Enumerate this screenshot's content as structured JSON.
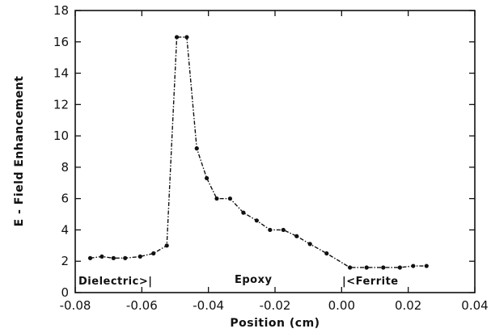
{
  "chart_data": {
    "type": "line",
    "title": "",
    "xlabel": "Position (cm)",
    "ylabel": "E - Field Enhancement",
    "xlim": [
      -0.08,
      0.04
    ],
    "ylim": [
      0,
      18
    ],
    "x_ticks": [
      "-0.08",
      "-0.06",
      "-0.04",
      "-0.02",
      "0.00",
      "0.02",
      "0.04"
    ],
    "y_ticks": [
      "0",
      "2",
      "4",
      "6",
      "8",
      "10",
      "12",
      "14",
      "16",
      "18"
    ],
    "grid": false,
    "series": [
      {
        "x": [
          -0.0755,
          -0.072,
          -0.0685,
          -0.065,
          -0.0605,
          -0.0565,
          -0.0525,
          -0.0495,
          -0.0465,
          -0.0435,
          -0.0405,
          -0.0375,
          -0.0335,
          -0.0295,
          -0.0255,
          -0.0215,
          -0.0175,
          -0.0135,
          -0.0095,
          -0.0045,
          0.0025,
          0.0075,
          0.0125,
          0.0175,
          0.0215,
          0.0255
        ],
        "y": [
          2.2,
          2.3,
          2.2,
          2.2,
          2.3,
          2.5,
          3.0,
          16.3,
          16.3,
          9.2,
          7.3,
          6.0,
          6.0,
          5.1,
          4.6,
          4.0,
          4.0,
          3.6,
          3.1,
          2.5,
          1.6,
          1.6,
          1.6,
          1.6,
          1.7,
          1.7
        ]
      }
    ],
    "annotations": [
      "Dielectric>|",
      "Epoxy",
      "|<Ferrite"
    ],
    "colors": {
      "line": "#111111",
      "axis": "#111111"
    }
  }
}
